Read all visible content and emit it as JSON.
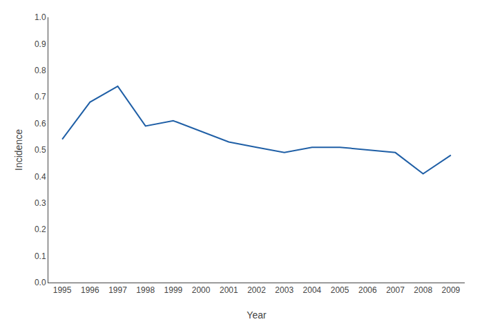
{
  "chart_data": {
    "type": "line",
    "x": [
      1995,
      1996,
      1997,
      1998,
      1999,
      2000,
      2001,
      2002,
      2003,
      2004,
      2005,
      2006,
      2007,
      2008,
      2009
    ],
    "values": [
      0.54,
      0.68,
      0.74,
      0.59,
      0.61,
      0.57,
      0.53,
      0.51,
      0.49,
      0.51,
      0.51,
      0.5,
      0.49,
      0.41,
      0.48
    ],
    "color": "#1f5fa6",
    "xlabel": "Year",
    "ylabel": "Incidence",
    "xlim": [
      1994.5,
      2009.5
    ],
    "xticks": [
      1995,
      1996,
      1997,
      1998,
      1999,
      2000,
      2001,
      2002,
      2003,
      2004,
      2005,
      2006,
      2007,
      2008,
      2009
    ],
    "ylim": [
      0.0,
      1.0
    ],
    "yticks": [
      {
        "value": 0.0,
        "label": "0.0"
      },
      0.1,
      0.2,
      0.3,
      0.4,
      0.5,
      0.6,
      0.7,
      0.8,
      0.9,
      {
        "value": 1.0,
        "label": "1.0"
      }
    ],
    "grid": false
  }
}
